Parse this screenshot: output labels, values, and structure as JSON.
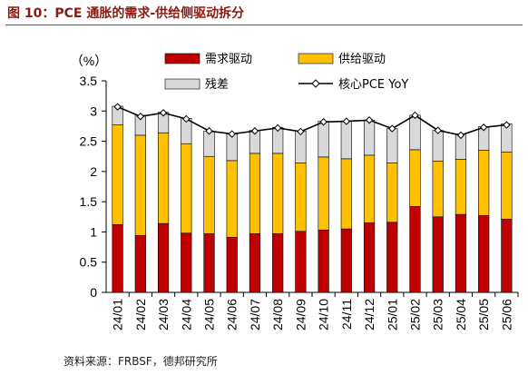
{
  "header": {
    "title": "图 10：PCE 通胀的需求-供给侧驱动拆分"
  },
  "footer": {
    "source": "资料来源：FRBSF，德邦研究所"
  },
  "chart_data": {
    "type": "bar",
    "stacked": true,
    "title": "",
    "xlabel": "",
    "ylabel": "（%）",
    "ylim": [
      0,
      3.5
    ],
    "yticks": [
      "0",
      "0.5",
      "1",
      "1.5",
      "2",
      "2.5",
      "3",
      "3.5"
    ],
    "grid": false,
    "legend_position": "top",
    "categories": [
      "24/01",
      "24/02",
      "24/03",
      "24/04",
      "24/05",
      "24/06",
      "24/07",
      "24/08",
      "24/09",
      "24/10",
      "24/11",
      "24/12",
      "25/01",
      "25/02",
      "25/03",
      "25/04",
      "25/05",
      "25/06"
    ],
    "series": [
      {
        "name": "需求驱动",
        "kind": "bar",
        "color": "#c00000",
        "values": [
          1.12,
          0.94,
          1.14,
          0.98,
          0.97,
          0.91,
          0.97,
          0.97,
          1.01,
          1.03,
          1.05,
          1.15,
          1.16,
          1.42,
          1.25,
          1.29,
          1.27,
          1.21
        ]
      },
      {
        "name": "供给驱动",
        "kind": "bar",
        "color": "#ffc000",
        "values": [
          1.65,
          1.66,
          1.5,
          1.48,
          1.28,
          1.27,
          1.33,
          1.33,
          1.13,
          1.21,
          1.16,
          1.12,
          0.98,
          0.94,
          0.92,
          0.91,
          1.08,
          1.11
        ]
      },
      {
        "name": "残差",
        "kind": "bar",
        "color": "#d9d9d9",
        "values": [
          0.31,
          0.33,
          0.34,
          0.42,
          0.42,
          0.44,
          0.38,
          0.43,
          0.53,
          0.59,
          0.62,
          0.58,
          0.57,
          0.57,
          0.51,
          0.42,
          0.39,
          0.47
        ]
      },
      {
        "name": "核心PCE YoY",
        "kind": "line",
        "color": "#000000",
        "values": [
          3.07,
          2.91,
          2.97,
          2.87,
          2.67,
          2.62,
          2.67,
          2.72,
          2.66,
          2.82,
          2.83,
          2.85,
          2.71,
          2.93,
          2.68,
          2.6,
          2.73,
          2.77
        ]
      }
    ]
  }
}
